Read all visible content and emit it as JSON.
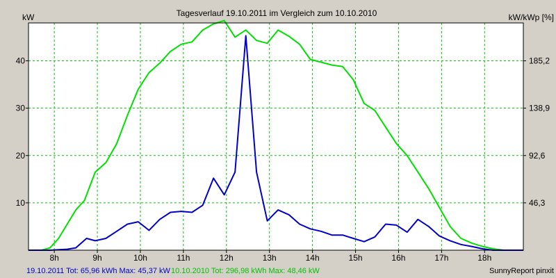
{
  "colors": {
    "background": "#d4d0c8",
    "plot_background": "#ffffff",
    "grid": "#00c800",
    "series_2011": "#0000c8",
    "series_2010": "#00e000",
    "text": "#000000"
  },
  "chart_data": {
    "type": "line",
    "title": "Tagesverlauf 19.10.2011 im Vergleich zum 10.10.2010",
    "ylabel_left": "kW",
    "ylabel_right": "kW/kWp [%]",
    "xlim": [
      7.4,
      18.9
    ],
    "ylim": [
      0,
      48
    ],
    "x_ticks": [
      8,
      9,
      10,
      11,
      12,
      13,
      14,
      15,
      16,
      17,
      18
    ],
    "x_tick_labels": [
      "8h",
      "9h",
      "10h",
      "11h",
      "12h",
      "13h",
      "14h",
      "15h",
      "16h",
      "17h",
      "18h"
    ],
    "y_ticks_left": [
      10,
      20,
      30,
      40
    ],
    "y_tick_labels_left": [
      "10",
      "20",
      "30",
      "40"
    ],
    "y_ticks_right_pos": [
      10,
      20,
      30,
      40
    ],
    "y_tick_labels_right": [
      "46,3",
      "92,6",
      "138,9",
      "185,2"
    ],
    "series": [
      {
        "name": "19.10.2011",
        "color": "#0000c8",
        "points": [
          [
            7.4,
            0
          ],
          [
            7.9,
            0
          ],
          [
            8.3,
            0.2
          ],
          [
            8.5,
            0.5
          ],
          [
            8.75,
            2.5
          ],
          [
            8.95,
            2.0
          ],
          [
            9.2,
            2.5
          ],
          [
            9.45,
            4.0
          ],
          [
            9.7,
            5.5
          ],
          [
            9.95,
            6.0
          ],
          [
            10.2,
            4.2
          ],
          [
            10.45,
            6.5
          ],
          [
            10.7,
            8.0
          ],
          [
            10.95,
            8.2
          ],
          [
            11.2,
            8.0
          ],
          [
            11.45,
            9.5
          ],
          [
            11.7,
            15.2
          ],
          [
            11.95,
            11.7
          ],
          [
            12.2,
            16.5
          ],
          [
            12.45,
            45.3
          ],
          [
            12.7,
            16.5
          ],
          [
            12.95,
            6.2
          ],
          [
            13.2,
            8.5
          ],
          [
            13.45,
            7.5
          ],
          [
            13.7,
            5.5
          ],
          [
            13.95,
            4.5
          ],
          [
            14.2,
            4.0
          ],
          [
            14.45,
            3.2
          ],
          [
            14.7,
            3.2
          ],
          [
            14.95,
            2.5
          ],
          [
            15.2,
            1.8
          ],
          [
            15.45,
            2.8
          ],
          [
            15.7,
            5.5
          ],
          [
            15.95,
            5.3
          ],
          [
            16.2,
            3.8
          ],
          [
            16.45,
            6.5
          ],
          [
            16.7,
            5.0
          ],
          [
            16.95,
            3.0
          ],
          [
            17.2,
            2.0
          ],
          [
            17.45,
            1.2
          ],
          [
            17.7,
            0.8
          ],
          [
            17.95,
            0.3
          ],
          [
            18.2,
            0
          ],
          [
            18.9,
            0
          ]
        ]
      },
      {
        "name": "10.10.2010",
        "color": "#00e000",
        "points": [
          [
            7.4,
            0
          ],
          [
            7.7,
            0
          ],
          [
            7.9,
            0.5
          ],
          [
            8.1,
            2.5
          ],
          [
            8.3,
            5.5
          ],
          [
            8.5,
            8.5
          ],
          [
            8.7,
            10.5
          ],
          [
            8.95,
            16.5
          ],
          [
            9.2,
            18.5
          ],
          [
            9.45,
            22.5
          ],
          [
            9.7,
            28.5
          ],
          [
            9.95,
            34.0
          ],
          [
            10.2,
            37.5
          ],
          [
            10.45,
            39.5
          ],
          [
            10.7,
            42.0
          ],
          [
            10.95,
            43.5
          ],
          [
            11.2,
            44.0
          ],
          [
            11.45,
            46.5
          ],
          [
            11.7,
            47.8
          ],
          [
            11.95,
            48.5
          ],
          [
            12.2,
            45.0
          ],
          [
            12.45,
            46.5
          ],
          [
            12.7,
            44.3
          ],
          [
            12.95,
            43.7
          ],
          [
            13.2,
            46.5
          ],
          [
            13.45,
            45.2
          ],
          [
            13.7,
            43.5
          ],
          [
            13.95,
            40.3
          ],
          [
            14.2,
            39.7
          ],
          [
            14.45,
            39.1
          ],
          [
            14.7,
            38.8
          ],
          [
            14.95,
            36.0
          ],
          [
            15.2,
            31.0
          ],
          [
            15.45,
            29.5
          ],
          [
            15.7,
            26.0
          ],
          [
            15.95,
            22.5
          ],
          [
            16.2,
            20.0
          ],
          [
            16.45,
            16.5
          ],
          [
            16.7,
            13.0
          ],
          [
            16.95,
            9.0
          ],
          [
            17.2,
            5.0
          ],
          [
            17.45,
            2.5
          ],
          [
            17.7,
            1.5
          ],
          [
            17.95,
            0.8
          ],
          [
            18.2,
            0.3
          ],
          [
            18.45,
            0
          ],
          [
            18.9,
            0
          ]
        ]
      }
    ],
    "footer": {
      "left_2011": "19.10.2011  Tot: 65,96 kWh Max: 45,37 kW",
      "left_2010": "10.10.2010  Tot: 296,98 kWh Max: 48,46 kW",
      "right": "SunnyReport pinxit"
    }
  }
}
